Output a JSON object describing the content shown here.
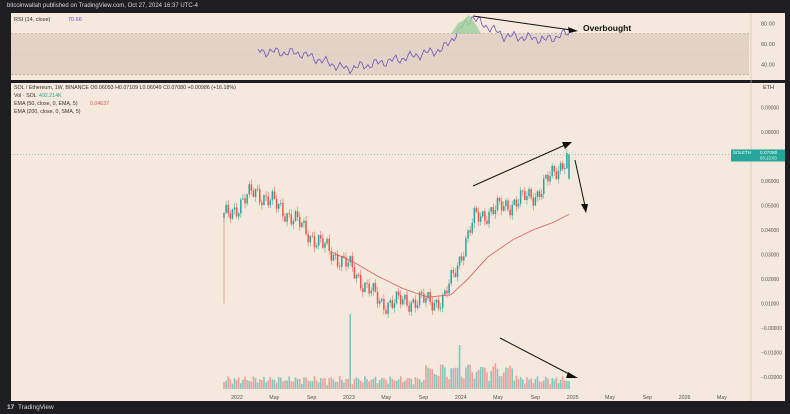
{
  "header": {
    "published_by": "bitcoinwallah published on TradingView.com, Oct 27, 2024 16:37 UTC-4"
  },
  "footer": {
    "brand": "TradingView",
    "logo_glyph": "17"
  },
  "rsi_panel": {
    "title": "RSI (14, close)",
    "value": "70.66",
    "line_color": "#6b55b8",
    "yticks": [
      "80.00",
      "60.00",
      "40.00"
    ],
    "annotation": "Overbought"
  },
  "price_panel": {
    "legend": {
      "symbol_line": "SOL / Ethereum, 1W, BINANCE  O0.06093  H0.07109  L0.06049  C0.07080  +0.00986 (+16.18%)",
      "vol_label": "Vol · SOL",
      "vol_value": "492.214K",
      "ema50_label": "EMA (50, close, 0, EMA, 5)",
      "ema50_value": "0.04637",
      "ema200_label": "EMA (200, close, 0, SMA, 5)"
    },
    "currency_badge": "ETH",
    "price_label_symbol": "SOLETH",
    "price_label_value": "0.07080",
    "price_label_countdown": "03:13:03",
    "yticks": [
      "0.09000",
      "0.08000",
      "0.07000",
      "0.06000",
      "0.05000",
      "0.04000",
      "0.03000",
      "0.02000",
      "0.01000",
      "−0.00000",
      "−0.01000",
      "−0.02000"
    ],
    "xticks": [
      "2022",
      "May",
      "Sep",
      "2023",
      "May",
      "Sep",
      "2024",
      "May",
      "Sep",
      "2025",
      "May",
      "Sep",
      "2026",
      "May"
    ],
    "ema_color": "#e05a5a",
    "up_color": "#26a69a",
    "down_color": "#ef5350"
  },
  "chart_data": {
    "type": "candlestick",
    "title": "SOL / Ethereum, 1W, BINANCE",
    "ylim": [
      -0.025,
      0.1
    ],
    "approx_close_path": [
      {
        "date": "2021-09",
        "close": 0.045
      },
      {
        "date": "2021-11",
        "close": 0.056
      },
      {
        "date": "2022-01",
        "close": 0.047
      },
      {
        "date": "2022-05",
        "close": 0.035
      },
      {
        "date": "2022-09",
        "close": 0.025
      },
      {
        "date": "2022-11",
        "close": 0.01
      },
      {
        "date": "2023-05",
        "close": 0.011
      },
      {
        "date": "2023-09",
        "close": 0.011
      },
      {
        "date": "2024-01",
        "close": 0.045
      },
      {
        "date": "2024-05",
        "close": 0.05
      },
      {
        "date": "2024-09",
        "close": 0.055
      },
      {
        "date": "2024-10",
        "close": 0.0708
      }
    ],
    "last": {
      "open": 0.06093,
      "high": 0.07109,
      "low": 0.06049,
      "close": 0.0708
    },
    "ema50_last": 0.04637
  }
}
